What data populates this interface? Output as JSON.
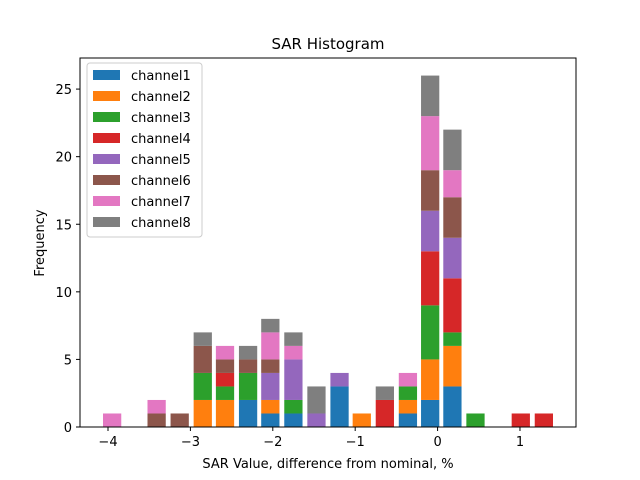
{
  "chart_data": {
    "type": "bar",
    "stacked": true,
    "title": "SAR Histogram",
    "xlabel": "SAR Value, difference from nominal, %",
    "ylabel": "Frequency",
    "xlim": [
      -4.34,
      1.68
    ],
    "ylim": [
      0,
      27.3
    ],
    "grid": false,
    "legend_position": "top-left",
    "bin_width": 0.277,
    "x": [
      -3.95,
      -3.41,
      -3.13,
      -2.85,
      -2.58,
      -2.3,
      -2.03,
      -1.75,
      -1.47,
      -1.19,
      -0.92,
      -0.64,
      -0.36,
      -0.09,
      0.18,
      0.46,
      1.01,
      1.29
    ],
    "xticks": [
      {
        "value": -4,
        "label": "−4"
      },
      {
        "value": -3,
        "label": "−3"
      },
      {
        "value": -2,
        "label": "−2"
      },
      {
        "value": -1,
        "label": "−1"
      },
      {
        "value": 0,
        "label": "0"
      },
      {
        "value": 1,
        "label": "1"
      }
    ],
    "yticks": [
      {
        "value": 0,
        "label": "0"
      },
      {
        "value": 5,
        "label": "5"
      },
      {
        "value": 10,
        "label": "10"
      },
      {
        "value": 15,
        "label": "15"
      },
      {
        "value": 20,
        "label": "20"
      },
      {
        "value": 25,
        "label": "25"
      }
    ],
    "series": [
      {
        "name": "channel1",
        "color": "#1f77b4",
        "values": [
          0,
          0,
          0,
          0,
          0,
          2,
          1,
          1,
          0,
          3,
          0,
          0,
          1,
          2,
          3,
          0,
          0,
          0
        ]
      },
      {
        "name": "channel2",
        "color": "#ff7f0e",
        "values": [
          0,
          0,
          0,
          2,
          2,
          0,
          1,
          0,
          0,
          0,
          1,
          0,
          1,
          3,
          3,
          0,
          0,
          0
        ]
      },
      {
        "name": "channel3",
        "color": "#2ca02c",
        "values": [
          0,
          0,
          0,
          2,
          1,
          2,
          0,
          1,
          0,
          0,
          0,
          0,
          1,
          4,
          1,
          1,
          0,
          0
        ]
      },
      {
        "name": "channel4",
        "color": "#d62728",
        "values": [
          0,
          0,
          0,
          0,
          1,
          0,
          0,
          0,
          0,
          0,
          0,
          2,
          0,
          4,
          4,
          0,
          1,
          1
        ]
      },
      {
        "name": "channel5",
        "color": "#9467bd",
        "values": [
          0,
          0,
          0,
          0,
          0,
          0,
          2,
          3,
          1,
          1,
          0,
          0,
          0,
          3,
          3,
          0,
          0,
          0
        ]
      },
      {
        "name": "channel6",
        "color": "#8c564b",
        "values": [
          0,
          1,
          1,
          2,
          1,
          1,
          1,
          0,
          0,
          0,
          0,
          0,
          0,
          3,
          3,
          0,
          0,
          0
        ]
      },
      {
        "name": "channel7",
        "color": "#e377c2",
        "values": [
          1,
          1,
          0,
          0,
          1,
          0,
          2,
          1,
          0,
          0,
          0,
          0,
          1,
          4,
          2,
          0,
          0,
          0
        ]
      },
      {
        "name": "channel8",
        "color": "#7f7f7f",
        "values": [
          0,
          0,
          0,
          1,
          0,
          1,
          1,
          1,
          2,
          0,
          0,
          1,
          0,
          3,
          3,
          0,
          0,
          0
        ]
      }
    ]
  }
}
